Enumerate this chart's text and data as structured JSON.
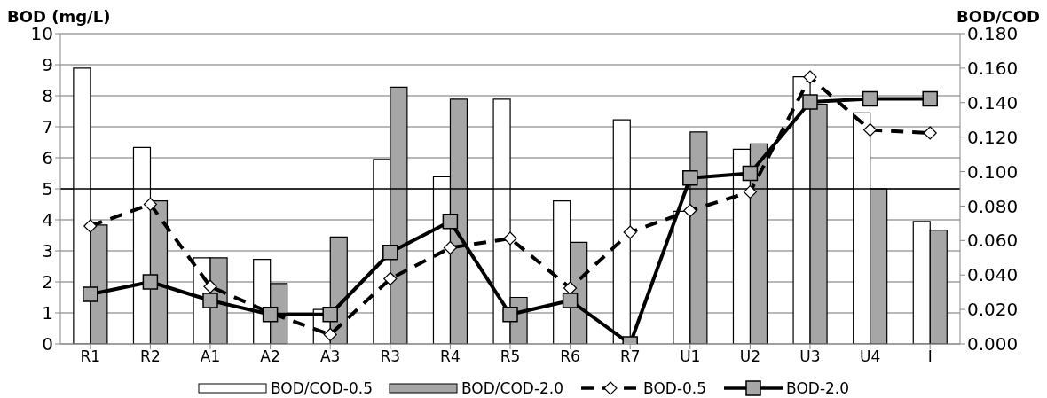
{
  "chart_data": {
    "type": "bar",
    "ylabel": "BOD (mg/L)",
    "y2label": "BOD/COD",
    "categories": [
      "R1",
      "R2",
      "A1",
      "A2",
      "A3",
      "R3",
      "R4",
      "R5",
      "R6",
      "R7",
      "U1",
      "U2",
      "U3",
      "U4",
      "I"
    ],
    "series": [
      {
        "name": "BOD/COD-0.5",
        "axis": "y2",
        "color": "#ffffff",
        "values": [
          0.16,
          0.114,
          0.05,
          0.049,
          0.02,
          0.107,
          0.097,
          0.142,
          0.083,
          0.13,
          0.077,
          0.113,
          0.155,
          0.134,
          0.071
        ]
      },
      {
        "name": "BOD/COD-2.0",
        "axis": "y2",
        "color": "#a6a6a6",
        "values": [
          0.069,
          0.083,
          0.05,
          0.035,
          0.062,
          0.149,
          0.142,
          0.027,
          0.059,
          null,
          0.123,
          0.116,
          0.139,
          0.09,
          0.066
        ]
      },
      {
        "name": "BOD-0.5",
        "type": "line",
        "color": "#000000",
        "marker": "diamond",
        "line_style": "dashed",
        "values": [
          3.8,
          4.5,
          1.85,
          1.0,
          0.3,
          2.1,
          3.1,
          3.4,
          1.8,
          3.6,
          4.3,
          4.9,
          8.6,
          6.9,
          6.8
        ]
      },
      {
        "name": "BOD-2.0",
        "type": "line",
        "color": "#000000",
        "marker": "square",
        "line_style": "solid",
        "values": [
          1.6,
          2.0,
          1.4,
          0.95,
          0.95,
          2.95,
          3.95,
          0.95,
          1.4,
          0,
          5.35,
          5.5,
          7.8,
          7.9,
          7.9
        ]
      }
    ],
    "ylim": [
      0,
      10
    ],
    "yticks": [
      0,
      1,
      2,
      3,
      4,
      5,
      6,
      7,
      8,
      9,
      10
    ],
    "y2lim": [
      0,
      0.18
    ],
    "y2ticks": [
      {
        "value": 0,
        "label": "0.000"
      },
      {
        "value": 0.02,
        "label": "0.020"
      },
      {
        "value": 0.04,
        "label": "0.040"
      },
      {
        "value": 0.06,
        "label": "0.060"
      },
      {
        "value": 0.08,
        "label": "0.080"
      },
      {
        "value": 0.1,
        "label": "0.100"
      },
      {
        "value": 0.12,
        "label": "0.120"
      },
      {
        "value": 0.14,
        "label": "0.140"
      },
      {
        "value": 0.16,
        "label": "0.160"
      },
      {
        "value": 0.18,
        "label": "0.180"
      }
    ],
    "ref_lines": [
      {
        "axis": "y",
        "value": 5,
        "color": "#000000"
      }
    ],
    "grid": "y",
    "legend": "bottom"
  }
}
